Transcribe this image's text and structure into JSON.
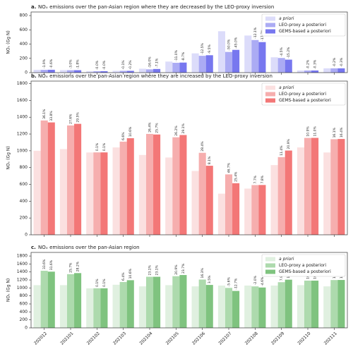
{
  "chart_data": [
    {
      "type": "bar",
      "panel": "a.",
      "title": "NOₓ emissions over the pan-Asian region where they are decreased by the LEO-proxy inversion",
      "y_label": "NOₓ (Gg N)",
      "categories": [
        "202012",
        "202101",
        "202102",
        "202103",
        "202104",
        "202105",
        "202106",
        "202107",
        "202108",
        "202109",
        "202110",
        "202111"
      ],
      "ylim": [
        0,
        850
      ],
      "yticks": [
        0,
        200,
        400,
        600,
        800
      ],
      "legend": "upper right",
      "series": [
        {
          "name": "a priori",
          "color": "#dcdcfa",
          "values": [
            40,
            35,
            20,
            25,
            55,
            155,
            270,
            580,
            520,
            215,
            30,
            60
          ]
        },
        {
          "name": "LEO-proxy a posteriori",
          "color": "#ababf4",
          "values": [
            39,
            34,
            20,
            25,
            46,
            138,
            236,
            290,
            457,
            205,
            30,
            60
          ],
          "change_labels": [
            "-1.9%",
            "-3.0%",
            "-0.0%",
            "-0.1%",
            "-16.0%",
            "-11.0%",
            "-12.5%",
            "-50.0%",
            "-12.1%",
            "-4.5%",
            "-0.2%",
            "-0.2%"
          ]
        },
        {
          "name": "GEMS-based a posteriori",
          "color": "#7777ef",
          "values": [
            40,
            34,
            20,
            25,
            51,
            141,
            244,
            319,
            428,
            182,
            30,
            60
          ],
          "change_labels": [
            "-0.6%",
            "-1.8%",
            "-0.0%",
            "-0.2%",
            "-7.1%",
            "-8.7%",
            "-9.5%",
            "-45.0%",
            "-17.7%",
            "-15.2%",
            "-0.3%",
            "-0.3%"
          ]
        }
      ]
    },
    {
      "type": "bar",
      "panel": "b.",
      "title": "NOₓ emissions over the pan-Asian region where they are increased by the LEO-proxy inversion",
      "y_label": "NOₓ (Gg N)",
      "categories": [
        "202012",
        "202101",
        "202102",
        "202103",
        "202104",
        "202105",
        "202106",
        "202107",
        "202108",
        "202109",
        "202110",
        "202111"
      ],
      "ylim": [
        0,
        1830
      ],
      "yticks": [
        0,
        200,
        400,
        600,
        800,
        1000,
        1200,
        1400,
        1600,
        1800
      ],
      "legend": "upper right",
      "series": [
        {
          "name": "a priori",
          "color": "#fbe0e0",
          "values": [
            1000,
            1020,
            980,
            1040,
            950,
            920,
            760,
            490,
            550,
            830,
            1040,
            980
          ]
        },
        {
          "name": "LEO-proxy a posteriori",
          "color": "#f6aeae",
          "values": [
            1361,
            1302,
            981,
            1109,
            1201,
            1161,
            976,
            719,
            592,
            925,
            1153,
            1138
          ],
          "change_labels": [
            "36.1%",
            "27.6%",
            "0.1%",
            "6.6%",
            "26.4%",
            "26.2%",
            "28.4%",
            "46.7%",
            "7.7%",
            "11.4%",
            "10.9%",
            "16.1%"
          ]
        },
        {
          "name": "GEMS-based a posteriori",
          "color": "#f37777",
          "values": [
            1338,
            1321,
            981,
            1150,
            1194,
            1188,
            822,
            614,
            593,
            1003,
            1154,
            1141
          ],
          "change_labels": [
            "33.8%",
            "29.5%",
            "0.1%",
            "10.6%",
            "25.7%",
            "29.1%",
            "8.1%",
            "25.4%",
            "7.8%",
            "20.9%",
            "11.0%",
            "16.4%"
          ]
        }
      ]
    },
    {
      "type": "bar",
      "panel": "c.",
      "title": "NOₓ emissions over the pan-Asian region",
      "y_label": "NOₓ (Gg N)",
      "categories": [
        "202012",
        "202101",
        "202102",
        "202103",
        "202104",
        "202105",
        "202106",
        "202107",
        "202108",
        "202109",
        "202110",
        "202111"
      ],
      "ylim": [
        0,
        1890
      ],
      "yticks": [
        0,
        200,
        400,
        600,
        800,
        1000,
        1200,
        1400,
        1600,
        1800
      ],
      "legend": "upper right",
      "series": [
        {
          "name": "a priori",
          "color": "#e0f0e0",
          "values": [
            1070,
            1070,
            990,
            1080,
            1040,
            1070,
            1040,
            1060,
            1060,
            1060,
            1070,
            1040
          ]
        },
        {
          "name": "LEO-proxy a posteriori",
          "color": "#addaad",
          "values": [
            1430,
            1345,
            991,
            1149,
            1280,
            1294,
            1210,
            1001,
            1039,
            1144,
            1183,
            1198
          ],
          "change_labels": [
            "33.6%",
            "25.7%",
            "0.1%",
            "6.4%",
            "23.1%",
            "20.9%",
            "16.3%",
            "-5.6%",
            "-2.0%",
            "7.9%",
            "10.6%",
            "15.2%"
          ]
        },
        {
          "name": "GEMS-based a posteriori",
          "color": "#7fc37f",
          "values": [
            1408,
            1372,
            991,
            1194,
            1280,
            1324,
            1076,
            925,
            1011,
            1207,
            1183,
            1200
          ],
          "change_labels": [
            "31.6%",
            "28.2%",
            "0.1%",
            "10.6%",
            "23.1%",
            "23.7%",
            "3.5%",
            "-12.7%",
            "-4.6%",
            "13.9%",
            "10.6%",
            "15.4%"
          ]
        }
      ]
    }
  ]
}
